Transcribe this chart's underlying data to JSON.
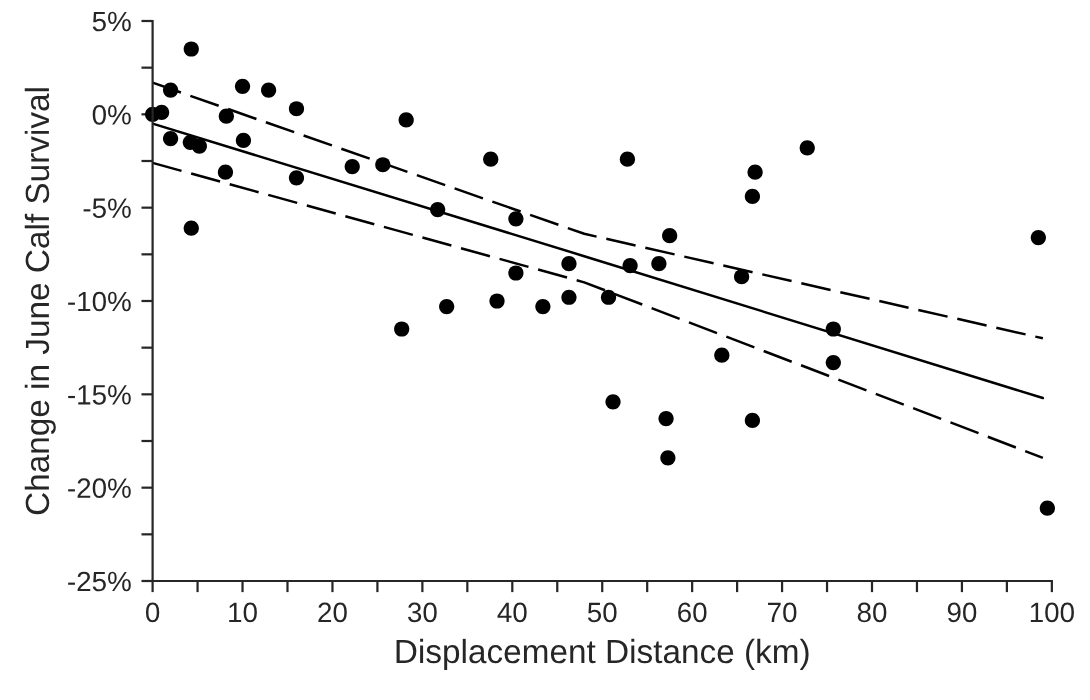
{
  "chart_data": {
    "type": "scatter",
    "xlabel": "Displacement Distance (km)",
    "ylabel": "Change in June Calf Survival",
    "xlim": [
      0,
      100
    ],
    "ylim": [
      -25,
      5
    ],
    "xticks": [
      0,
      {
        "value": 5,
        "label": null
      },
      10,
      {
        "value": 15,
        "label": null
      },
      20,
      {
        "value": 25,
        "label": null
      },
      30,
      {
        "value": 35,
        "label": null
      },
      40,
      {
        "value": 45,
        "label": null
      },
      50,
      {
        "value": 55,
        "label": null
      },
      60,
      {
        "value": 65,
        "label": null
      },
      70,
      {
        "value": 75,
        "label": null
      },
      80,
      {
        "value": 85,
        "label": null
      },
      90,
      {
        "value": 95,
        "label": null
      },
      100
    ],
    "yticks": [
      {
        "value": -25,
        "label": "-25%"
      },
      {
        "value": -22.5,
        "label": null
      },
      {
        "value": -20,
        "label": "-20%"
      },
      {
        "value": -17.5,
        "label": null
      },
      {
        "value": -15,
        "label": "-15%"
      },
      {
        "value": -12.5,
        "label": null
      },
      {
        "value": -10,
        "label": "-10%"
      },
      {
        "value": -7.5,
        "label": null
      },
      {
        "value": -5,
        "label": "-5%"
      },
      {
        "value": -2.5,
        "label": null
      },
      {
        "value": 0,
        "label": "0%"
      },
      {
        "value": 2.5,
        "label": null
      },
      {
        "value": 5,
        "label": "5%"
      }
    ],
    "grid": false,
    "legend": false,
    "series": [
      {
        "color": "#000000",
        "marker": "circle",
        "x": [
          0,
          1,
          2,
          2,
          4.3,
          4.2,
          5.2,
          4.3,
          8.1,
          8.2,
          10,
          10.1,
          12.9,
          16,
          16,
          22.2,
          25.6,
          28.2,
          27.7,
          31.7,
          32.7,
          37.6,
          38.3,
          40.4,
          40.4,
          43.4,
          46.3,
          46.3,
          52.8,
          57.5,
          53.1,
          56.3,
          50.7,
          51.2,
          57.1,
          57.3,
          63.3,
          65.5,
          66.7,
          67,
          66.7,
          72.8,
          75.7,
          75.7,
          98.5,
          99.5
        ],
        "values": [
          0,
          0.1,
          1.3,
          -1.3,
          3.5,
          -1.5,
          -1.7,
          -6.1,
          -3.1,
          -0.1,
          1.5,
          -1.4,
          1.3,
          0.3,
          -3.4,
          -2.8,
          -2.7,
          -0.3,
          -11.5,
          -5.1,
          -10.3,
          -2.4,
          -10,
          -5.6,
          -8.5,
          -10.3,
          -8,
          -9.8,
          -2.4,
          -6.5,
          -8.1,
          -8,
          -9.8,
          -15.4,
          -16.3,
          -18.4,
          -12.9,
          -8.7,
          -4.4,
          -3.1,
          -16.4,
          -1.8,
          -11.5,
          -13.3,
          -6.6,
          -21.1
        ]
      },
      {
        "type": "line",
        "color": "#000000",
        "line_style": "solid",
        "marker": "none",
        "x": [
          0,
          48,
          99
        ],
        "values": [
          -0.5,
          -7.6,
          -15.2
        ]
      },
      {
        "type": "line",
        "color": "#000000",
        "line_style": "dashed",
        "marker": "none",
        "x": [
          0,
          48,
          99
        ],
        "values": [
          1.7,
          -6.4,
          -12
        ]
      },
      {
        "type": "line",
        "color": "#000000",
        "line_style": "dashed",
        "marker": "none",
        "x": [
          0,
          48,
          99
        ],
        "values": [
          -2.6,
          -9,
          -18.4
        ]
      }
    ]
  }
}
